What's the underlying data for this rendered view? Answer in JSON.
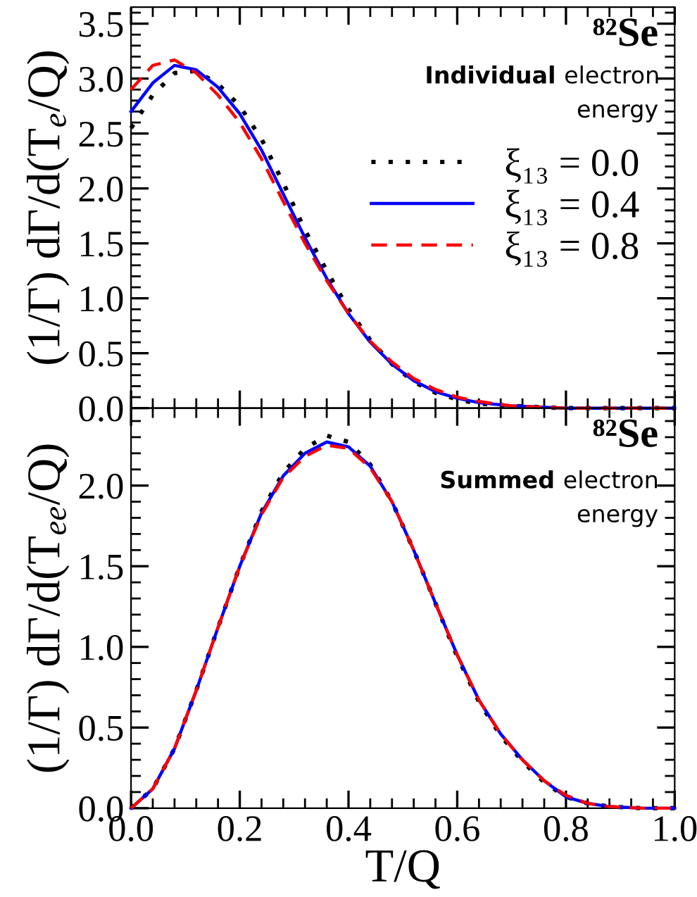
{
  "chart_data": [
    {
      "type": "line",
      "ylabel": "(1/Γ) dΓ/d(T$_{e}$/Q)",
      "annotations": [
        "⁸²Se",
        "Individual electron energy"
      ],
      "x": [
        0,
        0.04,
        0.08,
        0.12,
        0.16,
        0.2,
        0.24,
        0.28,
        0.32,
        0.36,
        0.4,
        0.44,
        0.48,
        0.52,
        0.56,
        0.6,
        0.64,
        0.7,
        0.8,
        1.0
      ],
      "xlim": [
        0,
        1
      ],
      "xticks": [
        0,
        0.2,
        0.4,
        0.6,
        0.8,
        1.0
      ],
      "ylim": [
        0,
        3.65
      ],
      "yticks": [
        {
          "value": 0,
          "label": "0.0"
        },
        0.5,
        {
          "value": 1,
          "label": "1.0"
        },
        1.5,
        {
          "value": 2,
          "label": "2.0"
        },
        2.5,
        {
          "value": 3,
          "label": "3.0"
        },
        3.5
      ],
      "tick_labels": "y",
      "legend": "right",
      "grid": false,
      "series": [
        {
          "name": "ξ₁₃ = 0.0",
          "color": "#000000",
          "line_style": "dotted",
          "values": [
            2.55,
            2.85,
            3.05,
            3.07,
            2.95,
            2.75,
            2.45,
            2.05,
            1.62,
            1.25,
            0.9,
            0.62,
            0.4,
            0.24,
            0.14,
            0.08,
            0.04,
            0.02,
            0,
            0
          ]
        },
        {
          "name": "ξ₁₃ = 0.4",
          "color": "#0000ff",
          "line_style": "solid",
          "values": [
            2.7,
            2.96,
            3.12,
            3.08,
            2.92,
            2.68,
            2.35,
            1.95,
            1.55,
            1.18,
            0.86,
            0.6,
            0.4,
            0.25,
            0.15,
            0.09,
            0.05,
            0.02,
            0,
            0
          ]
        },
        {
          "name": "ξ₁₃ = 0.8",
          "color": "#ff0000",
          "line_style": "dashed",
          "values": [
            2.9,
            3.12,
            3.17,
            3.05,
            2.85,
            2.6,
            2.27,
            1.88,
            1.5,
            1.16,
            0.86,
            0.61,
            0.42,
            0.27,
            0.17,
            0.1,
            0.06,
            0.02,
            0,
            0
          ]
        }
      ]
    },
    {
      "type": "line",
      "xlabel": "T/Q",
      "ylabel": "(1/Γ) dΓ/d(T$_{ee}$/Q)",
      "annotations": [
        "⁸²Se",
        "Summed electron energy"
      ],
      "x": [
        0,
        0.04,
        0.08,
        0.12,
        0.16,
        0.2,
        0.24,
        0.28,
        0.32,
        0.36,
        0.4,
        0.44,
        0.48,
        0.52,
        0.56,
        0.6,
        0.64,
        0.68,
        0.72,
        0.76,
        0.8,
        0.84,
        0.88,
        0.94,
        1.0
      ],
      "xlim": [
        0,
        1
      ],
      "xticks": [
        {
          "value": 0,
          "label": "0.0"
        },
        0.2,
        0.4,
        0.6,
        0.8,
        {
          "value": 1,
          "label": "1.0"
        }
      ],
      "ylim": [
        0,
        2.48
      ],
      "yticks": [
        {
          "value": 0,
          "label": "0.0"
        },
        0.5,
        {
          "value": 1,
          "label": "1.0"
        },
        1.5,
        {
          "value": 2,
          "label": "2.0"
        }
      ],
      "grid": false,
      "series": [
        {
          "color": "#000000",
          "line_style": "dotted",
          "values": [
            0,
            0.12,
            0.37,
            0.73,
            1.12,
            1.5,
            1.84,
            2.08,
            2.23,
            2.31,
            2.27,
            2.13,
            1.9,
            1.6,
            1.27,
            0.94,
            0.66,
            0.45,
            0.29,
            0.16,
            0.07,
            0.03,
            0.01,
            0,
            0
          ]
        },
        {
          "color": "#0000ff",
          "line_style": "solid",
          "values": [
            0,
            0.12,
            0.37,
            0.73,
            1.12,
            1.5,
            1.83,
            2.06,
            2.2,
            2.27,
            2.24,
            2.12,
            1.9,
            1.6,
            1.27,
            0.95,
            0.67,
            0.46,
            0.3,
            0.17,
            0.07,
            0.03,
            0.01,
            0,
            0
          ]
        },
        {
          "color": "#ff0000",
          "line_style": "dashed",
          "values": [
            0,
            0.12,
            0.37,
            0.73,
            1.12,
            1.5,
            1.82,
            2.05,
            2.18,
            2.25,
            2.23,
            2.11,
            1.9,
            1.6,
            1.27,
            0.95,
            0.67,
            0.46,
            0.3,
            0.17,
            0.08,
            0.03,
            0.01,
            0,
            0
          ]
        }
      ]
    }
  ]
}
